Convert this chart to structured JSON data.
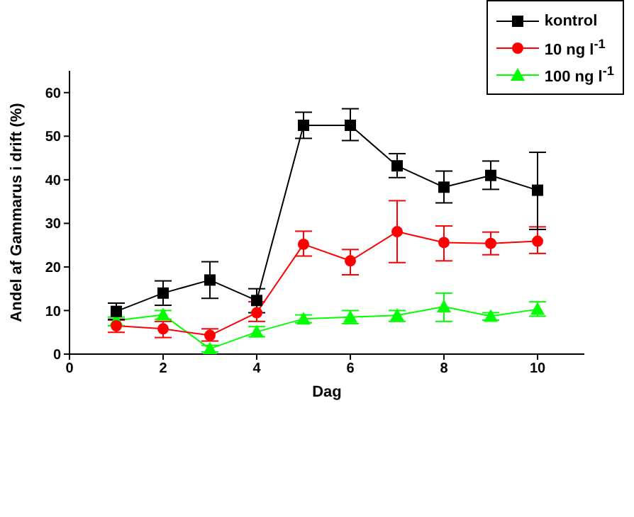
{
  "chart_data": {
    "type": "line",
    "xlabel": "Dag",
    "ylabel": "Andel af Gammarus i drift (%)",
    "x": [
      1,
      2,
      3,
      4,
      5,
      6,
      7,
      8,
      9,
      10
    ],
    "xlim": [
      0,
      11
    ],
    "xticks": [
      0,
      2,
      4,
      6,
      8,
      10
    ],
    "ylim": [
      0,
      65
    ],
    "yticks": [
      0,
      10,
      20,
      30,
      40,
      50,
      60
    ],
    "grid": false,
    "legend": "top right",
    "series": [
      {
        "name": "kontrol",
        "color": "#000000",
        "marker": "square",
        "values": [
          9.8,
          14,
          17,
          12.3,
          52.5,
          52.5,
          43.2,
          38.3,
          41,
          37.6
        ],
        "errors": [
          [
            8,
            11.7
          ],
          [
            11.2,
            16.8
          ],
          [
            12.8,
            21.2
          ],
          [
            9.5,
            15
          ],
          [
            49.5,
            55.5
          ],
          [
            49,
            56.3
          ],
          [
            40.5,
            46
          ],
          [
            34.7,
            42
          ],
          [
            37.8,
            44.3
          ],
          [
            28.6,
            46.3
          ]
        ]
      },
      {
        "name": "10 ng l$^{-1}$",
        "color": "#ff0000",
        "marker": "circle",
        "values": [
          6.5,
          5.8,
          4.3,
          9.5,
          25.2,
          21.4,
          28.1,
          25.6,
          25.4,
          25.9
        ],
        "errors": [
          [
            5,
            7.8
          ],
          [
            3.8,
            7.5
          ],
          [
            3,
            5.8
          ],
          [
            7.5,
            12
          ],
          [
            22.5,
            28.2
          ],
          [
            18.2,
            24
          ],
          [
            21,
            35.2
          ],
          [
            21.4,
            29.4
          ],
          [
            22.8,
            28
          ],
          [
            23.1,
            29.2
          ]
        ]
      },
      {
        "name": "100 ng l$^{-1}$",
        "color": "#00ff00",
        "marker": "triangle",
        "values": [
          7.7,
          9,
          1.2,
          5.1,
          8.1,
          8.5,
          8.9,
          10.9,
          8.7,
          10.3
        ],
        "errors": [
          [
            6.5,
            8.5
          ],
          [
            8,
            10
          ],
          [
            0.5,
            2
          ],
          [
            4,
            6.3
          ],
          [
            7.2,
            9
          ],
          [
            7,
            10
          ],
          [
            7.5,
            10
          ],
          [
            7.5,
            14
          ],
          [
            7.8,
            9.5
          ],
          [
            8.7,
            12
          ]
        ]
      }
    ]
  }
}
